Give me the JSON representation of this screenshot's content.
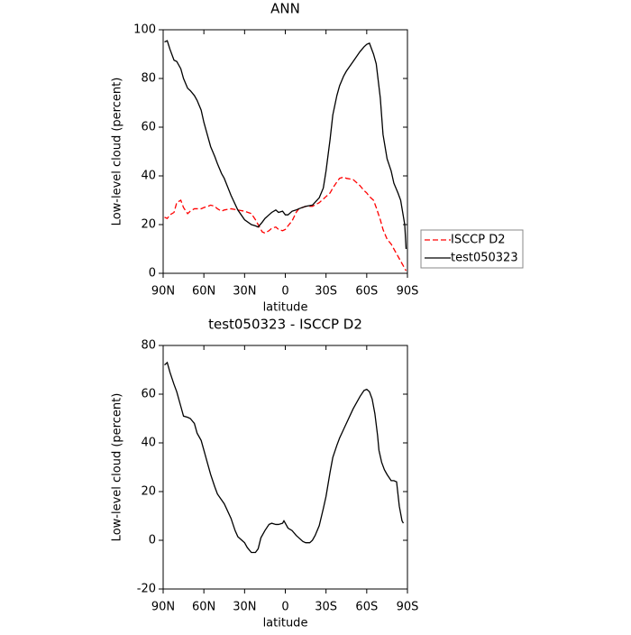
{
  "chart_data": [
    {
      "type": "line",
      "title": "ANN",
      "xlabel": "latitude",
      "ylabel": "Low-level cloud (percent)",
      "x": [
        89,
        87,
        85,
        82,
        80,
        77,
        75,
        72,
        70,
        67,
        65,
        62,
        60,
        57,
        55,
        52,
        50,
        47,
        45,
        40,
        35,
        30,
        25,
        22,
        20,
        17,
        15,
        12,
        10,
        7,
        5,
        2,
        0,
        -2,
        -5,
        -8,
        -10,
        -15,
        -20,
        -25,
        -28,
        -30,
        -33,
        -35,
        -38,
        -40,
        -43,
        -45,
        -50,
        -55,
        -58,
        -60,
        -62,
        -65,
        -67,
        -70,
        -72,
        -75,
        -78,
        -80,
        -83,
        -85,
        -88,
        -89
      ],
      "xlim": [
        90,
        -90
      ],
      "xticks": [
        {
          "value": 90,
          "label": "90N"
        },
        {
          "value": 60,
          "label": "60N"
        },
        {
          "value": 30,
          "label": "30N"
        },
        0,
        {
          "value": -30,
          "label": "30S"
        },
        {
          "value": -60,
          "label": "60S"
        },
        {
          "value": -90,
          "label": "90S"
        }
      ],
      "ylim": [
        0,
        100
      ],
      "yticks": [
        0,
        20,
        40,
        60,
        80,
        100
      ],
      "legend": "right",
      "series": [
        {
          "name": "ISCCP D2",
          "color": "#ff0000",
          "dashed": true,
          "values": [
            23,
            22.5,
            24,
            25,
            29,
            30,
            27,
            24.5,
            25.5,
            26.5,
            26.5,
            26.5,
            27,
            27.5,
            28,
            27.5,
            26.5,
            25.5,
            26,
            26.5,
            26,
            25.5,
            24.5,
            22,
            20,
            17,
            16.5,
            17.5,
            18.5,
            19,
            18,
            17.5,
            18,
            19.5,
            21.5,
            25,
            26.5,
            27.5,
            27.5,
            29,
            30.5,
            31.5,
            33,
            35,
            37.5,
            39,
            39.5,
            39,
            38.5,
            36,
            34,
            33,
            31.5,
            30,
            27,
            22,
            18,
            14,
            12,
            10,
            7,
            5,
            2,
            1
          ]
        },
        {
          "name": "test050323",
          "color": "#000000",
          "dashed": false,
          "values": [
            95,
            95.5,
            92,
            87.5,
            87,
            84,
            80,
            76,
            75,
            73,
            71,
            67,
            62,
            56,
            52,
            48,
            45,
            41,
            39,
            32,
            26,
            22,
            20,
            19.5,
            19,
            21,
            22.5,
            24,
            25,
            26,
            25,
            25.5,
            24,
            24,
            25.5,
            26,
            26.5,
            27.5,
            28,
            31,
            35,
            42,
            55,
            65,
            73,
            77,
            81,
            83,
            87,
            91,
            93,
            94,
            94.5,
            90,
            86,
            72,
            57,
            47,
            42,
            37,
            33,
            30,
            20,
            10
          ]
        }
      ]
    },
    {
      "type": "line",
      "title": "test050323 - ISCCP D2",
      "xlabel": "latitude",
      "ylabel": "Low-level cloud (percent)",
      "x": [
        89,
        87,
        85,
        82,
        80,
        77,
        75,
        72,
        70,
        67,
        65,
        62,
        60,
        57,
        55,
        52,
        50,
        45,
        40,
        37,
        35,
        32,
        30,
        28,
        25,
        22,
        20,
        18,
        15,
        12,
        10,
        7,
        5,
        2,
        1,
        0,
        -2,
        -5,
        -8,
        -10,
        -13,
        -15,
        -18,
        -20,
        -22,
        -25,
        -28,
        -30,
        -33,
        -35,
        -38,
        -40,
        -45,
        -50,
        -55,
        -58,
        -60,
        -62,
        -64,
        -66,
        -68,
        -69,
        -71,
        -73,
        -75,
        -78,
        -80,
        -82,
        -84,
        -86,
        -87
      ],
      "xlim": [
        90,
        -90
      ],
      "xticks": [
        {
          "value": 90,
          "label": "90N"
        },
        {
          "value": 60,
          "label": "60N"
        },
        {
          "value": 30,
          "label": "30N"
        },
        0,
        {
          "value": -30,
          "label": "30S"
        },
        {
          "value": -60,
          "label": "60S"
        },
        {
          "value": -90,
          "label": "90S"
        }
      ],
      "ylim": [
        -20,
        80
      ],
      "yticks": [
        -20,
        0,
        20,
        40,
        60,
        80
      ],
      "series": [
        {
          "color": "#000000",
          "dashed": false,
          "values": [
            72,
            73,
            69,
            64,
            61,
            55,
            51,
            50.5,
            50,
            48,
            44,
            41,
            37,
            31,
            27,
            22,
            19,
            15,
            9,
            4,
            1.5,
            0,
            -1,
            -3,
            -5,
            -5,
            -3.5,
            1,
            4,
            6.5,
            7,
            6.5,
            6.5,
            7,
            8,
            7,
            5,
            4,
            2,
            1,
            -0.5,
            -1,
            -1,
            0,
            2,
            6,
            13,
            18,
            28,
            34,
            39,
            42,
            48,
            54,
            59,
            61.5,
            62,
            61,
            58,
            52,
            43,
            37,
            32,
            29,
            27,
            24.5,
            24.5,
            24,
            14,
            8,
            7
          ]
        }
      ]
    }
  ]
}
